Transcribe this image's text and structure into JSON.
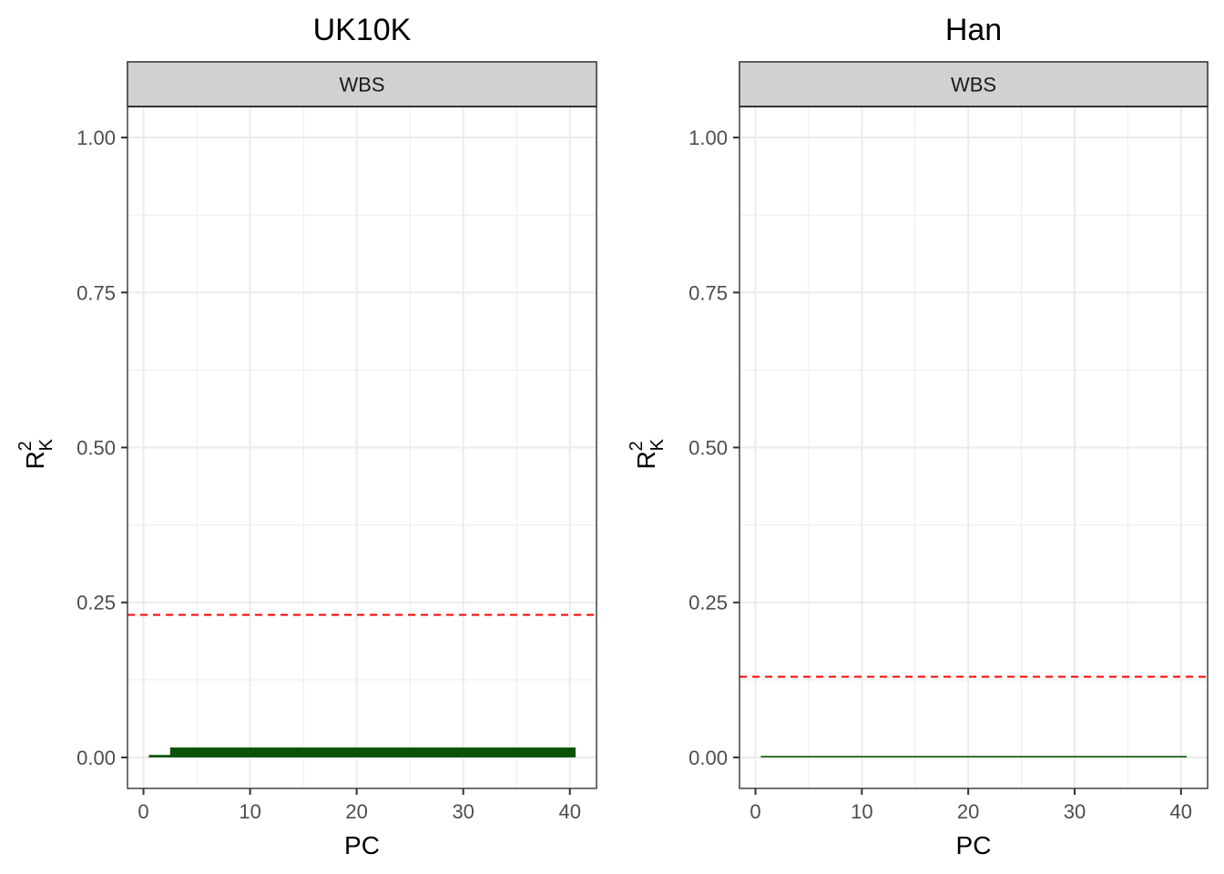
{
  "chart_data": [
    {
      "type": "bar",
      "title": "UK10K",
      "strip": "WBS",
      "xlabel": "PC",
      "ylabel": {
        "base": "R",
        "sup": "2",
        "sub": "K"
      },
      "xlim": [
        -1.5,
        42.5
      ],
      "ylim": [
        -0.05,
        1.05
      ],
      "x_ticks": [
        0,
        10,
        20,
        30,
        40
      ],
      "y_ticks": [
        0.0,
        0.25,
        0.5,
        0.75,
        1.0
      ],
      "y_tick_labels": [
        "0.00",
        "0.25",
        "0.50",
        "0.75",
        "1.00"
      ],
      "grid": true,
      "bar_color": "#0b5307",
      "series": [
        {
          "x": [
            1,
            2,
            3,
            4,
            5,
            6,
            7,
            8,
            9,
            10,
            11,
            12,
            13,
            14,
            15,
            16,
            17,
            18,
            19,
            20,
            21,
            22,
            23,
            24,
            25,
            26,
            27,
            28,
            29,
            30,
            31,
            32,
            33,
            34,
            35,
            36,
            37,
            38,
            39,
            40
          ],
          "values": [
            0.004,
            0.004,
            0.016,
            0.016,
            0.016,
            0.016,
            0.016,
            0.016,
            0.016,
            0.016,
            0.016,
            0.016,
            0.016,
            0.016,
            0.016,
            0.016,
            0.016,
            0.016,
            0.016,
            0.016,
            0.016,
            0.016,
            0.016,
            0.016,
            0.016,
            0.016,
            0.016,
            0.016,
            0.016,
            0.016,
            0.016,
            0.016,
            0.016,
            0.016,
            0.016,
            0.016,
            0.016,
            0.016,
            0.016,
            0.016
          ]
        }
      ],
      "threshold": {
        "value": 0.23,
        "color": "#ff0000",
        "style": "dashed"
      }
    },
    {
      "type": "bar",
      "title": "Han",
      "strip": "WBS",
      "xlabel": "PC",
      "ylabel": {
        "base": "R",
        "sup": "2",
        "sub": "K"
      },
      "xlim": [
        -1.5,
        42.5
      ],
      "ylim": [
        -0.05,
        1.05
      ],
      "x_ticks": [
        0,
        10,
        20,
        30,
        40
      ],
      "y_ticks": [
        0.0,
        0.25,
        0.5,
        0.75,
        1.0
      ],
      "y_tick_labels": [
        "0.00",
        "0.25",
        "0.50",
        "0.75",
        "1.00"
      ],
      "grid": true,
      "bar_color": "#0b5307",
      "series": [
        {
          "x": [
            1,
            2,
            3,
            4,
            5,
            6,
            7,
            8,
            9,
            10,
            11,
            12,
            13,
            14,
            15,
            16,
            17,
            18,
            19,
            20,
            21,
            22,
            23,
            24,
            25,
            26,
            27,
            28,
            29,
            30,
            31,
            32,
            33,
            34,
            35,
            36,
            37,
            38,
            39,
            40
          ],
          "values": [
            0.001,
            0.001,
            0.001,
            0.001,
            0.001,
            0.001,
            0.001,
            0.001,
            0.001,
            0.001,
            0.001,
            0.001,
            0.001,
            0.001,
            0.001,
            0.001,
            0.001,
            0.001,
            0.001,
            0.001,
            0.001,
            0.001,
            0.001,
            0.001,
            0.001,
            0.001,
            0.001,
            0.001,
            0.001,
            0.001,
            0.001,
            0.001,
            0.001,
            0.001,
            0.001,
            0.001,
            0.001,
            0.001,
            0.001,
            0.001
          ]
        }
      ],
      "threshold": {
        "value": 0.13,
        "color": "#ff0000",
        "style": "dashed"
      }
    }
  ]
}
